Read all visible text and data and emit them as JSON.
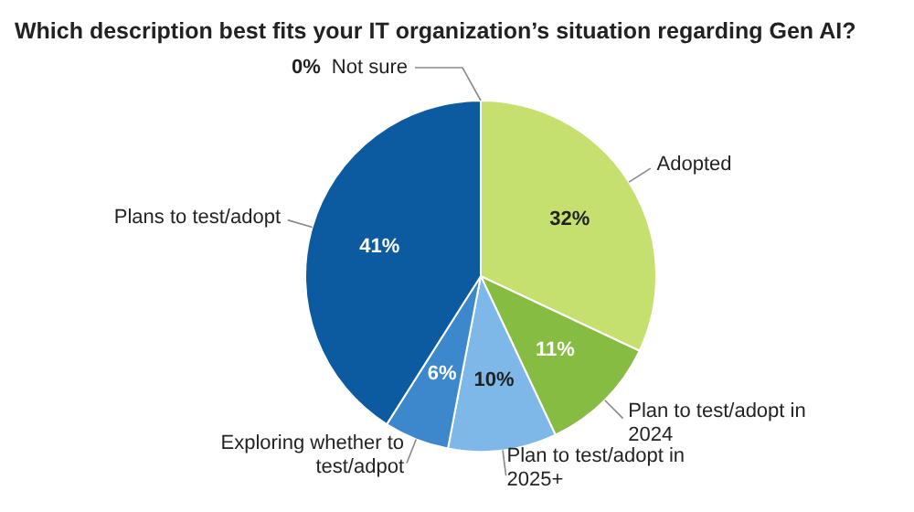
{
  "chart_data": {
    "type": "pie",
    "title": "Which description best fits your IT organization’s situation regarding Gen AI?",
    "categories": [
      "Not sure",
      "Adopted",
      "Plan to test/adopt in 2024",
      "Plan to test/adopt in 2025+",
      "Exploring whether to test/adpot",
      "Plans to test/adopt"
    ],
    "values": [
      0,
      32,
      11,
      10,
      6,
      41
    ],
    "value_labels": [
      "0%",
      "32%",
      "11%",
      "10%",
      "6%",
      "41%"
    ],
    "colors": [
      "#9e9e9e",
      "#c6e06f",
      "#86bc42",
      "#7db8e8",
      "#3d87cd",
      "#0c5aa0"
    ]
  }
}
